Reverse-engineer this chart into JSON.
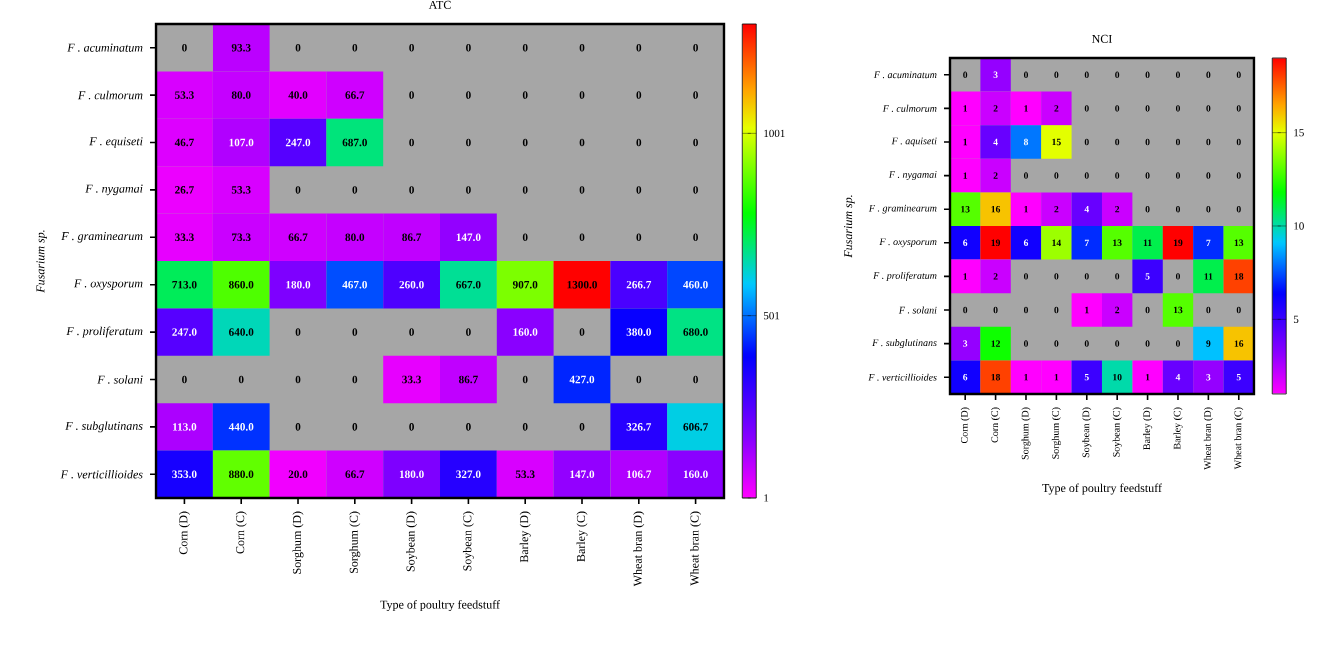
{
  "chart_data": [
    {
      "type": "heatmap",
      "title": "ATC",
      "xlabel": "Type of poultry feedstuff",
      "ylabel": "Fusarium sp.",
      "categories": [
        "Corn (D)",
        "Corn (C)",
        "Sorghum (D)",
        "Sorghum (C)",
        "Soybean (D)",
        "Soybean (C)",
        "Barley (D)",
        "Barley (C)",
        "Wheat bran (D)",
        "Wheat bran (C)"
      ],
      "y_categories": [
        "F . acuminatum",
        "F . culmorum",
        "F . equiseti",
        "F . nygamai",
        "F . graminearum",
        "F . oxysporum",
        "F . proliferatum",
        "F . solani",
        "F . subglutinans",
        "F . verticillioides"
      ],
      "cells": [
        [
          null,
          93.3,
          null,
          null,
          null,
          null,
          null,
          null,
          null,
          null
        ],
        [
          53.3,
          80.0,
          40.0,
          66.7,
          null,
          null,
          null,
          null,
          null,
          null
        ],
        [
          46.7,
          107.0,
          247.0,
          687.0,
          null,
          null,
          null,
          null,
          null,
          null
        ],
        [
          26.7,
          53.3,
          null,
          null,
          null,
          null,
          null,
          null,
          null,
          null
        ],
        [
          33.3,
          73.3,
          66.7,
          80.0,
          86.7,
          147.0,
          null,
          null,
          null,
          null
        ],
        [
          713.0,
          860.0,
          180.0,
          467.0,
          260.0,
          667.0,
          907.0,
          1300.0,
          266.7,
          460.0
        ],
        [
          247.0,
          640.0,
          null,
          null,
          null,
          null,
          160.0,
          null,
          380.0,
          680.0
        ],
        [
          null,
          null,
          null,
          null,
          33.3,
          86.7,
          null,
          427.0,
          null,
          null
        ],
        [
          113.0,
          440.0,
          null,
          null,
          null,
          null,
          null,
          null,
          326.7,
          606.7
        ],
        [
          353.0,
          880.0,
          20.0,
          66.7,
          180.0,
          327.0,
          53.3,
          147.0,
          106.7,
          160.0
        ]
      ],
      "cell_labels": [
        [
          "0",
          "93.3",
          "0",
          "0",
          "0",
          "0",
          "0",
          "0",
          "0",
          "0"
        ],
        [
          "53.3",
          "80.0",
          "40.0",
          "66.7",
          "0",
          "0",
          "0",
          "0",
          "0",
          "0"
        ],
        [
          "46.7",
          "107.0",
          "247.0",
          "687.0",
          "0",
          "0",
          "0",
          "0",
          "0",
          "0"
        ],
        [
          "26.7",
          "53.3",
          "0",
          "0",
          "0",
          "0",
          "0",
          "0",
          "0",
          "0"
        ],
        [
          "33.3",
          "73.3",
          "66.7",
          "80.0",
          "86.7",
          "147.0",
          "0",
          "0",
          "0",
          "0"
        ],
        [
          "713.0",
          "860.0",
          "180.0",
          "467.0",
          "260.0",
          "667.0",
          "907.0",
          "1300.0",
          "266.7",
          "460.0"
        ],
        [
          "247.0",
          "640.0",
          "0",
          "0",
          "0",
          "0",
          "160.0",
          "0",
          "380.0",
          "680.0"
        ],
        [
          "0",
          "0",
          "0",
          "0",
          "33.3",
          "86.7",
          "0",
          "427.0",
          "0",
          "0"
        ],
        [
          "113.0",
          "440.0",
          "0",
          "0",
          "0",
          "0",
          "0",
          "0",
          "326.7",
          "606.7"
        ],
        [
          "353.0",
          "880.0",
          "20.0",
          "66.7",
          "180.0",
          "327.0",
          "53.3",
          "147.0",
          "106.7",
          "160.0"
        ]
      ],
      "clim": [
        1,
        1301
      ],
      "cticks": [
        1,
        501,
        1001
      ]
    },
    {
      "type": "heatmap",
      "title": "NCI",
      "xlabel": "Type of poultry feedstuff",
      "ylabel": "Fusarium sp.",
      "categories": [
        "Corn (D)",
        "Corn (C)",
        "Sorghum (D)",
        "Sorghum (C)",
        "Soybean (D)",
        "Soybean (C)",
        "Barley (D)",
        "Barley (C)",
        "Wheat bran (D)",
        "Wheat bran (C)"
      ],
      "y_categories": [
        "F . acuminatum",
        "F . culmorum",
        "F . aquiseti",
        "F . nygamai",
        "F . graminearum",
        "F . oxysporum",
        "F . proliferatum",
        "F . solani",
        "F . subglutinans",
        "F . verticillioides"
      ],
      "cells": [
        [
          null,
          3,
          null,
          null,
          null,
          null,
          null,
          null,
          null,
          null
        ],
        [
          1,
          2,
          1,
          2,
          null,
          null,
          null,
          null,
          null,
          null
        ],
        [
          1,
          4,
          8,
          15,
          null,
          null,
          null,
          null,
          null,
          null
        ],
        [
          1,
          2,
          null,
          null,
          null,
          null,
          null,
          null,
          null,
          null
        ],
        [
          13,
          16,
          1,
          2,
          4,
          2,
          null,
          null,
          null,
          null
        ],
        [
          6,
          19,
          6,
          14,
          7,
          13,
          11,
          19,
          7,
          13
        ],
        [
          1,
          2,
          null,
          null,
          null,
          null,
          5,
          null,
          11,
          18
        ],
        [
          null,
          null,
          null,
          null,
          1,
          2,
          null,
          13,
          null,
          null
        ],
        [
          3,
          12,
          null,
          null,
          null,
          null,
          null,
          null,
          9,
          16
        ],
        [
          6,
          18,
          1,
          1,
          5,
          10,
          1,
          4,
          3,
          5
        ]
      ],
      "cell_labels": [
        [
          "0",
          "3",
          "0",
          "0",
          "0",
          "0",
          "0",
          "0",
          "0",
          "0"
        ],
        [
          "1",
          "2",
          "1",
          "2",
          "0",
          "0",
          "0",
          "0",
          "0",
          "0"
        ],
        [
          "1",
          "4",
          "8",
          "15",
          "0",
          "0",
          "0",
          "0",
          "0",
          "0"
        ],
        [
          "1",
          "2",
          "0",
          "0",
          "0",
          "0",
          "0",
          "0",
          "0",
          "0"
        ],
        [
          "13",
          "16",
          "1",
          "2",
          "4",
          "2",
          "0",
          "0",
          "0",
          "0"
        ],
        [
          "6",
          "19",
          "6",
          "14",
          "7",
          "13",
          "11",
          "19",
          "7",
          "13"
        ],
        [
          "1",
          "2",
          "0",
          "0",
          "0",
          "0",
          "5",
          "0",
          "11",
          "18"
        ],
        [
          "0",
          "0",
          "0",
          "0",
          "1",
          "2",
          "0",
          "13",
          "0",
          "0"
        ],
        [
          "3",
          "12",
          "0",
          "0",
          "0",
          "0",
          "0",
          "0",
          "9",
          "16"
        ],
        [
          "6",
          "18",
          "1",
          "1",
          "5",
          "10",
          "1",
          "4",
          "3",
          "5"
        ]
      ],
      "clim": [
        1,
        19
      ],
      "cticks": [
        5,
        10,
        15
      ]
    }
  ]
}
